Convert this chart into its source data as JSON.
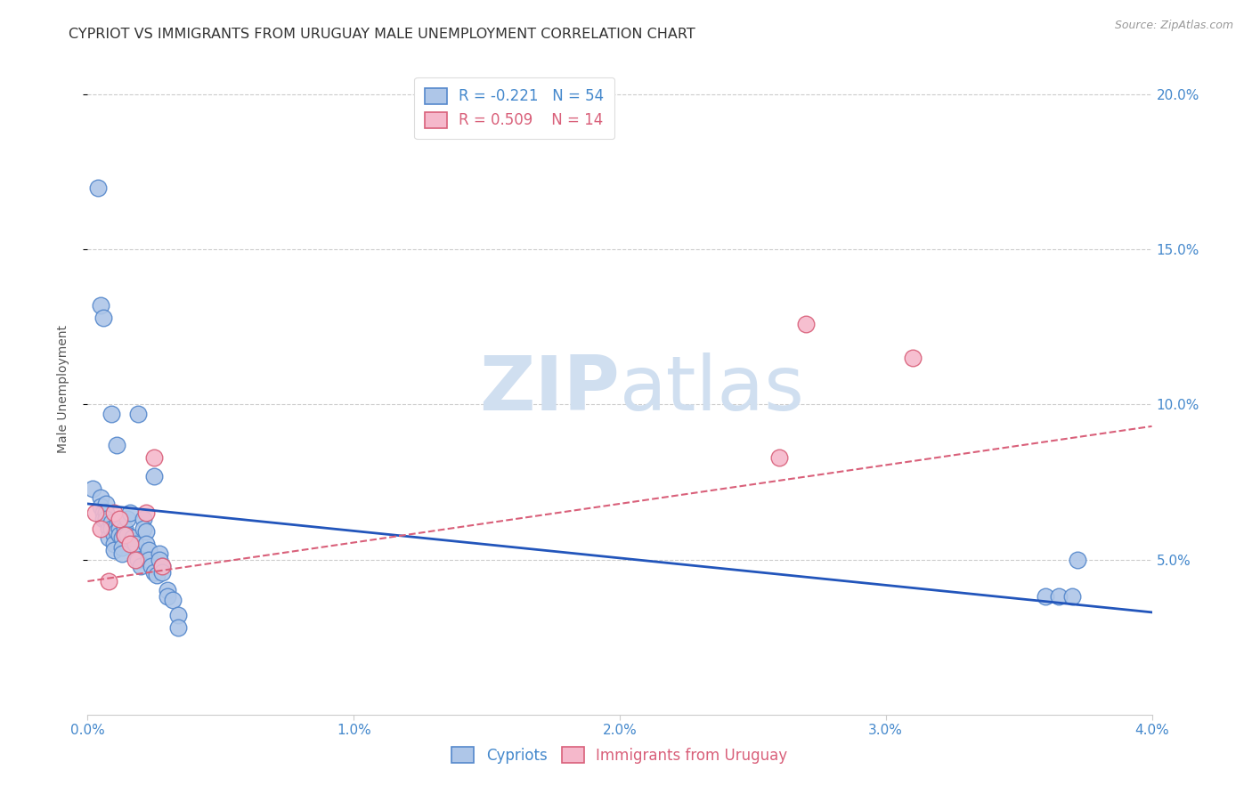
{
  "title": "CYPRIOT VS IMMIGRANTS FROM URUGUAY MALE UNEMPLOYMENT CORRELATION CHART",
  "source": "Source: ZipAtlas.com",
  "ylabel": "Male Unemployment",
  "x_min": 0.0,
  "x_max": 0.04,
  "y_min": 0.0,
  "y_max": 0.21,
  "x_ticks": [
    0.0,
    0.01,
    0.02,
    0.03,
    0.04
  ],
  "x_tick_labels": [
    "0.0%",
    "1.0%",
    "2.0%",
    "3.0%",
    "4.0%"
  ],
  "y_ticks": [
    0.05,
    0.1,
    0.15,
    0.2
  ],
  "y_tick_labels": [
    "5.0%",
    "10.0%",
    "15.0%",
    "20.0%"
  ],
  "cypriot_color": "#aec6e8",
  "cypriot_edge_color": "#5588cc",
  "uruguay_color": "#f5b8cb",
  "uruguay_edge_color": "#d9607a",
  "trend_cypriot_color": "#2255bb",
  "trend_uruguay_color": "#d9607a",
  "legend_r_cypriot": "R = -0.221",
  "legend_n_cypriot": "N = 54",
  "legend_r_uruguay": "R = 0.509",
  "legend_n_uruguay": "N = 14",
  "watermark_zip": "ZIP",
  "watermark_atlas": "atlas",
  "watermark_color": "#d0dff0",
  "cypriot_x": [
    0.0002,
    0.0005,
    0.0005,
    0.0006,
    0.0006,
    0.0007,
    0.0007,
    0.0007,
    0.0008,
    0.0008,
    0.0009,
    0.0009,
    0.001,
    0.001,
    0.001,
    0.0011,
    0.0011,
    0.0012,
    0.0012,
    0.0012,
    0.0013,
    0.0013,
    0.0013,
    0.0014,
    0.0014,
    0.0015,
    0.0015,
    0.0016,
    0.0017,
    0.0018,
    0.0019,
    0.002,
    0.0021,
    0.0021,
    0.0022,
    0.0022,
    0.0023,
    0.0023,
    0.0024,
    0.0025,
    0.0026,
    0.0027,
    0.0027,
    0.0028,
    0.0028,
    0.003,
    0.003,
    0.0032,
    0.0034,
    0.0034,
    0.036,
    0.0365,
    0.037,
    0.0372
  ],
  "cypriot_y": [
    0.073,
    0.07,
    0.067,
    0.065,
    0.063,
    0.068,
    0.065,
    0.063,
    0.06,
    0.057,
    0.062,
    0.06,
    0.058,
    0.055,
    0.053,
    0.061,
    0.059,
    0.062,
    0.06,
    0.058,
    0.057,
    0.054,
    0.052,
    0.06,
    0.058,
    0.063,
    0.058,
    0.065,
    0.057,
    0.055,
    0.05,
    0.048,
    0.063,
    0.06,
    0.059,
    0.055,
    0.053,
    0.05,
    0.048,
    0.046,
    0.045,
    0.052,
    0.05,
    0.048,
    0.046,
    0.04,
    0.038,
    0.037,
    0.032,
    0.028,
    0.038,
    0.038,
    0.038,
    0.05
  ],
  "cypriot_y_outliers": [
    0.17,
    0.132,
    0.128,
    0.097,
    0.097,
    0.087,
    0.077
  ],
  "cypriot_x_outliers": [
    0.0004,
    0.0005,
    0.0006,
    0.0009,
    0.0019,
    0.0011,
    0.0025
  ],
  "uruguay_x": [
    0.0003,
    0.0005,
    0.0008,
    0.001,
    0.0012,
    0.0014,
    0.0016,
    0.0018,
    0.0022,
    0.0025,
    0.0028,
    0.026,
    0.027,
    0.031
  ],
  "uruguay_y": [
    0.065,
    0.06,
    0.043,
    0.065,
    0.063,
    0.058,
    0.055,
    0.05,
    0.065,
    0.083,
    0.048,
    0.083,
    0.126,
    0.115
  ],
  "cypriot_trend_x": [
    0.0,
    0.04
  ],
  "cypriot_trend_y": [
    0.068,
    0.033
  ],
  "uruguay_trend_x": [
    0.0,
    0.04
  ],
  "uruguay_trend_y": [
    0.043,
    0.093
  ],
  "background_color": "#ffffff",
  "grid_color": "#cccccc",
  "tick_color": "#4488cc",
  "title_fontsize": 11.5,
  "axis_label_fontsize": 10,
  "tick_fontsize": 11,
  "legend_fontsize": 12
}
